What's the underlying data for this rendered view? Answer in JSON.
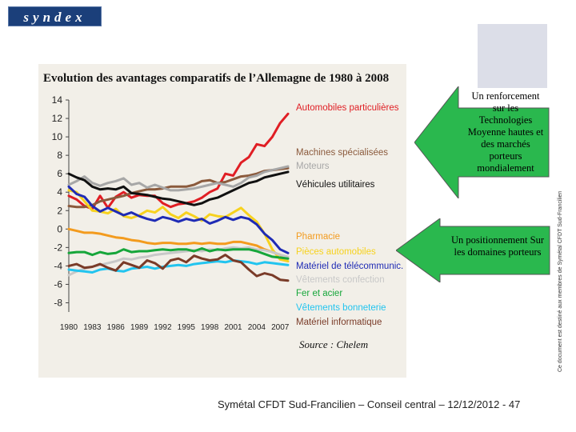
{
  "logo": {
    "text": "syndex"
  },
  "chart_data": {
    "type": "line",
    "title": "Evolution des avantages comparatifs de l’Allemagne de 1980 à 2008",
    "source": "Source : Chelem",
    "xlabel": "",
    "ylabel": "",
    "xlim": [
      1980,
      2008
    ],
    "ylim": [
      -9,
      14
    ],
    "x_ticks": [
      "1980",
      "1983",
      "1986",
      "1989",
      "1992",
      "1995",
      "1998",
      "2001",
      "2004",
      "2007"
    ],
    "y_ticks": [
      "14",
      "12",
      "10",
      "8",
      "6",
      "4",
      "2",
      "0",
      "-2",
      "-4",
      "-6",
      "-8"
    ],
    "x": [
      1980,
      1981,
      1982,
      1983,
      1984,
      1985,
      1986,
      1987,
      1988,
      1989,
      1990,
      1991,
      1992,
      1993,
      1994,
      1995,
      1996,
      1997,
      1998,
      1999,
      2000,
      2001,
      2002,
      2003,
      2004,
      2005,
      2006,
      2007,
      2008
    ],
    "series": [
      {
        "name": "Automobiles particulières",
        "color": "#e01e24",
        "values": [
          3.6,
          3.2,
          2.5,
          2.2,
          3.6,
          2.3,
          3.5,
          4.0,
          3.4,
          3.7,
          3.6,
          3.6,
          2.8,
          2.4,
          2.7,
          2.8,
          3.0,
          3.4,
          4.0,
          4.4,
          6.0,
          5.8,
          7.2,
          7.8,
          9.2,
          9.0,
          10.0,
          11.5,
          12.5
        ]
      },
      {
        "name": "Machines spécialisées",
        "color": "#8b5a3c",
        "values": [
          2.5,
          2.4,
          2.4,
          2.6,
          3.0,
          3.2,
          3.4,
          3.6,
          3.9,
          4.1,
          4.3,
          4.3,
          4.4,
          4.6,
          4.6,
          4.6,
          4.8,
          5.2,
          5.3,
          5.0,
          5.1,
          5.4,
          5.7,
          5.8,
          6.0,
          6.3,
          6.4,
          6.5,
          6.6
        ]
      },
      {
        "name": "Moteurs",
        "color": "#a7a7a7",
        "values": [
          4.8,
          5.2,
          5.7,
          5.0,
          4.7,
          5.0,
          5.2,
          5.5,
          4.8,
          5.0,
          4.5,
          4.8,
          4.5,
          4.2,
          4.2,
          4.3,
          4.4,
          4.6,
          4.8,
          5.0,
          4.8,
          4.6,
          5.0,
          5.6,
          5.8,
          6.2,
          6.4,
          6.6,
          6.8
        ]
      },
      {
        "name": "Véhicules utilitaires",
        "color": "#111111",
        "values": [
          6.0,
          5.6,
          5.3,
          4.6,
          4.3,
          4.4,
          4.3,
          4.6,
          3.9,
          3.8,
          3.7,
          3.5,
          3.3,
          3.2,
          3.0,
          2.8,
          2.6,
          2.8,
          3.2,
          3.4,
          3.8,
          4.2,
          4.6,
          5.0,
          5.2,
          5.6,
          5.8,
          6.0,
          6.2
        ]
      },
      {
        "name": "Pharmacie",
        "color": "#f39b1e",
        "values": [
          0.0,
          -0.2,
          -0.4,
          -0.4,
          -0.5,
          -0.7,
          -0.9,
          -1.0,
          -1.2,
          -1.3,
          -1.5,
          -1.6,
          -1.5,
          -1.5,
          -1.6,
          -1.6,
          -1.5,
          -1.6,
          -1.5,
          -1.6,
          -1.6,
          -1.4,
          -1.4,
          -1.6,
          -1.8,
          -2.2,
          -2.5,
          -2.8,
          -3.2
        ]
      },
      {
        "name": "Pièces automobiles",
        "color": "#f7d21e",
        "values": [
          4.2,
          4.0,
          3.0,
          2.0,
          1.9,
          1.7,
          2.2,
          1.4,
          1.2,
          1.5,
          2.0,
          1.8,
          2.4,
          1.6,
          1.2,
          1.8,
          1.4,
          0.9,
          1.6,
          1.4,
          1.3,
          1.8,
          2.3,
          1.5,
          0.8,
          -0.5,
          -2.2,
          -3.3,
          -3.5
        ]
      },
      {
        "name": "Matériel de télécommunic.",
        "color": "#1f2bb5",
        "values": [
          4.6,
          3.8,
          3.5,
          2.5,
          1.9,
          2.3,
          1.9,
          1.5,
          1.8,
          1.4,
          1.1,
          0.9,
          1.3,
          1.1,
          0.8,
          1.1,
          0.9,
          1.1,
          0.6,
          0.9,
          1.3,
          1.0,
          1.3,
          1.1,
          0.5,
          -0.5,
          -1.2,
          -2.2,
          -2.6
        ]
      },
      {
        "name": "Vêtements confection",
        "color": "#c8c8c8",
        "values": [
          -5.0,
          -4.6,
          -4.3,
          -4.1,
          -3.9,
          -3.7,
          -3.5,
          -3.2,
          -3.3,
          -3.1,
          -3.0,
          -2.8,
          -2.7,
          -2.6,
          -2.5,
          -2.4,
          -2.3,
          -2.4,
          -2.2,
          -2.3,
          -2.1,
          -2.0,
          -2.1,
          -2.0,
          -2.2,
          -2.3,
          -2.5,
          -2.8,
          -3.0
        ]
      },
      {
        "name": "Fer et acier",
        "color": "#16a63a",
        "values": [
          -2.6,
          -2.5,
          -2.5,
          -2.8,
          -2.5,
          -2.7,
          -2.6,
          -2.2,
          -2.5,
          -2.4,
          -2.4,
          -2.3,
          -2.2,
          -2.3,
          -2.2,
          -2.2,
          -2.4,
          -2.1,
          -2.4,
          -2.2,
          -2.3,
          -2.2,
          -2.2,
          -2.2,
          -2.4,
          -2.7,
          -3.0,
          -3.1,
          -3.2
        ]
      },
      {
        "name": "Vêtements bonneterie",
        "color": "#22c4ef",
        "values": [
          -4.4,
          -4.5,
          -4.6,
          -4.7,
          -4.4,
          -4.3,
          -4.5,
          -4.6,
          -4.3,
          -4.2,
          -4.1,
          -4.3,
          -4.1,
          -4.0,
          -3.9,
          -4.0,
          -3.8,
          -3.7,
          -3.6,
          -3.5,
          -3.6,
          -3.4,
          -3.5,
          -3.6,
          -3.8,
          -3.6,
          -3.7,
          -3.8,
          -3.9
        ]
      },
      {
        "name": "Matériel informatique",
        "color": "#7a3b28",
        "values": [
          -4.0,
          -3.8,
          -4.2,
          -4.1,
          -3.8,
          -4.2,
          -4.5,
          -3.6,
          -3.9,
          -4.2,
          -3.4,
          -3.7,
          -4.3,
          -3.4,
          -3.2,
          -3.6,
          -2.9,
          -3.2,
          -3.4,
          -3.3,
          -2.8,
          -3.4,
          -3.6,
          -4.4,
          -5.1,
          -4.8,
          -5.0,
          -5.5,
          -5.6
        ]
      }
    ]
  },
  "callouts": [
    {
      "text": "Un renforcement sur les Technologies Moyenne hautes et des marchés porteurs mondialement",
      "color": "#2ab84e"
    },
    {
      "text": "Un positionnement Sur les domaines porteurs",
      "color": "#2ab84e"
    }
  ],
  "vertical_note": {
    "text": "Ce document est destiné aux membres de Symétal CFDT Sud-Francilien"
  },
  "footer": {
    "text": "Symétal CFDT Sud-Francilien – Conseil central – 12/12/2012 - 47"
  }
}
